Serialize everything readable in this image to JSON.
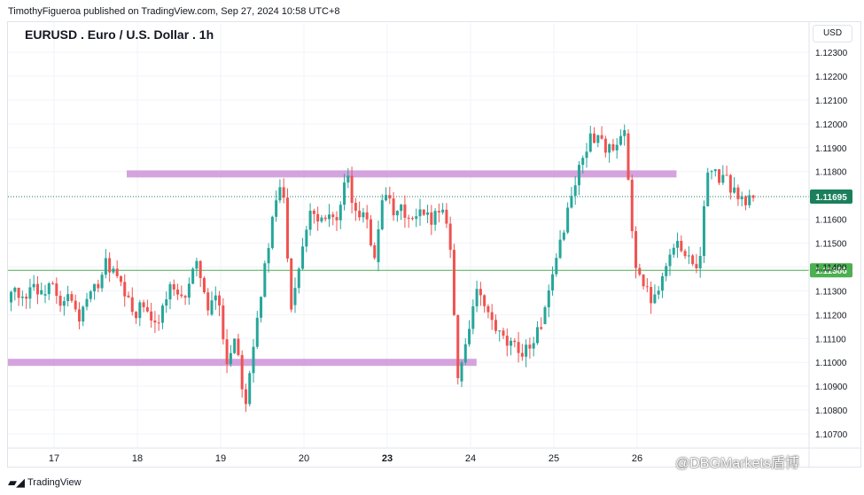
{
  "header": {
    "publish_line": "TimothyFigueroa published on TradingView.com, Sep 27, 2024 10:58 UTC+8",
    "title": "EURUSD . Euro / U.S. Dollar . 1h",
    "currency": "USD"
  },
  "footer": {
    "logo_text": "TradingView",
    "watermark": "@DBGMarkets盾博"
  },
  "colors": {
    "up": "#26a69a",
    "down": "#ef5350",
    "zone": "#ce93d8",
    "current_price": "#1b7f5c",
    "level_line": "#4caf50",
    "grid": "#f0f3fa"
  },
  "chart_data": {
    "type": "candlestick",
    "symbol": "EURUSD",
    "interval": "1h",
    "ylim": [
      1.1068,
      1.1238
    ],
    "y_ticks": [
      "1.12300",
      "1.12200",
      "1.12100",
      "1.12000",
      "1.11900",
      "1.11800",
      "1.11600",
      "1.11500",
      "1.11400",
      "1.11300",
      "1.11200",
      "1.11100",
      "1.11000",
      "1.10900",
      "1.10800",
      "1.10700"
    ],
    "x_ticks": [
      {
        "label": "17",
        "bold": false
      },
      {
        "label": "18",
        "bold": false
      },
      {
        "label": "19",
        "bold": false
      },
      {
        "label": "20",
        "bold": false
      },
      {
        "label": "23",
        "bold": true
      },
      {
        "label": "24",
        "bold": false
      },
      {
        "label": "25",
        "bold": false
      },
      {
        "label": "26",
        "bold": false
      }
    ],
    "current_price": {
      "label": "1.11695",
      "value": 1.11695
    },
    "horizontal_level": {
      "label": "1.11386",
      "value": 1.11386
    },
    "zones": [
      {
        "value": 1.1179,
        "start_day": 2.0,
        "end_day": 8.6
      },
      {
        "value": 1.11,
        "start_day": -0.5,
        "end_day": 6.2
      }
    ],
    "days": [
      {
        "label": "16",
        "path": [
          1.109,
          1.11,
          1.112,
          1.1118,
          1.1128,
          1.1124,
          1.1132,
          1.1126,
          1.1134,
          1.1128
        ]
      },
      {
        "label": "17",
        "path": [
          1.1128,
          1.1134,
          1.1122,
          1.1128,
          1.1118,
          1.1126,
          1.1132,
          1.1142,
          1.1136,
          1.1128
        ]
      },
      {
        "label": "18",
        "path": [
          1.1128,
          1.112,
          1.1124,
          1.1114,
          1.1122,
          1.1132,
          1.1124,
          1.1134,
          1.1142,
          1.112
        ]
      },
      {
        "label": "19",
        "path": [
          1.112,
          1.113,
          1.11,
          1.1112,
          1.1082,
          1.1112,
          1.1136,
          1.116,
          1.1178,
          1.1124
        ]
      },
      {
        "label": "20",
        "path": [
          1.1124,
          1.1145,
          1.1165,
          1.116,
          1.1164,
          1.1158,
          1.1178,
          1.116,
          1.1166,
          1.1142
        ]
      },
      {
        "label": "23",
        "path": [
          1.1142,
          1.1176,
          1.116,
          1.1164,
          1.1158,
          1.1162,
          1.116,
          1.1165,
          1.116,
          1.1092
        ]
      },
      {
        "label": "24",
        "path": [
          1.1092,
          1.1112,
          1.113,
          1.1122,
          1.1114,
          1.1108,
          1.1106,
          1.1105,
          1.1108,
          1.1116
        ]
      },
      {
        "label": "25",
        "path": [
          1.1116,
          1.113,
          1.115,
          1.1166,
          1.118,
          1.1192,
          1.1196,
          1.119,
          1.1188,
          1.1196
        ]
      },
      {
        "label": "26",
        "path": [
          1.1196,
          1.1145,
          1.1132,
          1.1126,
          1.1136,
          1.1146,
          1.115,
          1.1144,
          1.114,
          1.118
        ]
      },
      {
        "label": "27",
        "path": [
          1.118,
          1.1178,
          1.1176,
          1.1172,
          1.1166,
          1.117
        ]
      }
    ],
    "grid": true
  }
}
